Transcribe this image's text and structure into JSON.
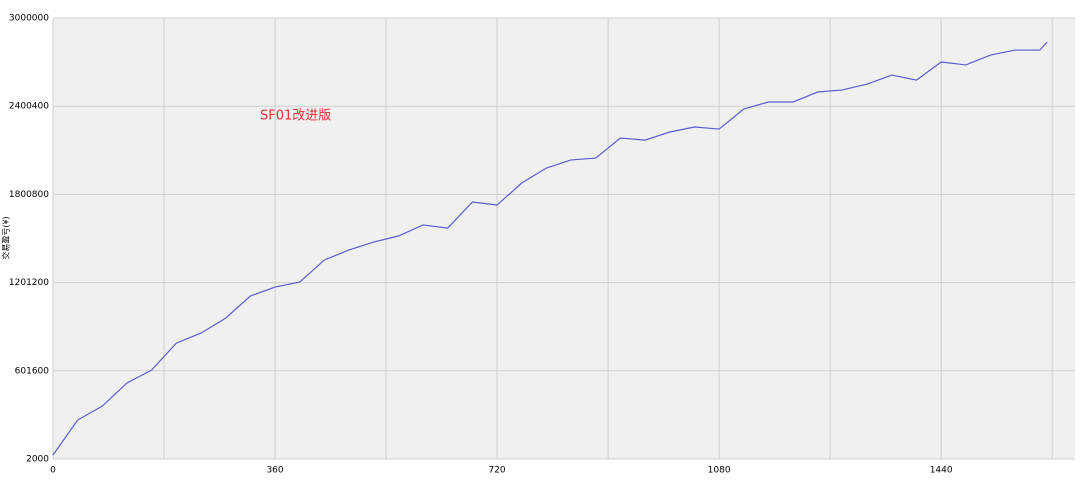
{
  "chart_data": {
    "type": "line",
    "y_label": "交易盈亏(¥)",
    "annotation": "SF01改进版",
    "x": [
      0,
      40,
      80,
      120,
      160,
      200,
      240,
      280,
      320,
      360,
      400,
      440,
      480,
      520,
      560,
      600,
      640,
      680,
      720,
      760,
      800,
      840,
      880,
      920,
      960,
      1000,
      1040,
      1080,
      1120,
      1160,
      1200,
      1240,
      1280,
      1320,
      1360,
      1400,
      1440,
      1480,
      1520,
      1560,
      1600,
      1612
    ],
    "series": [
      {
        "color": "#5b5bd0",
        "values": [
          29000,
          267000,
          362000,
          519000,
          607000,
          790000,
          858000,
          960000,
          1110000,
          1171000,
          1205000,
          1355000,
          1423000,
          1477000,
          1518000,
          1593000,
          1572000,
          1749000,
          1729000,
          1878000,
          1980000,
          2035000,
          2048000,
          2184000,
          2170000,
          2225000,
          2259000,
          2245000,
          2381000,
          2429000,
          2429000,
          2497000,
          2511000,
          2551000,
          2612000,
          2578000,
          2701000,
          2681000,
          2748000,
          2782000,
          2782000,
          2837000
        ]
      }
    ],
    "xlim": [
      0,
      1657
    ],
    "xticks": [
      0,
      360,
      720,
      1080,
      1440
    ],
    "xminor": [
      180,
      540,
      900,
      1260,
      1620
    ],
    "ylim": [
      2000,
      3000000
    ],
    "yticks": [
      2000,
      601600,
      1201200,
      1800800,
      2400400,
      3000000
    ],
    "grid": true
  }
}
